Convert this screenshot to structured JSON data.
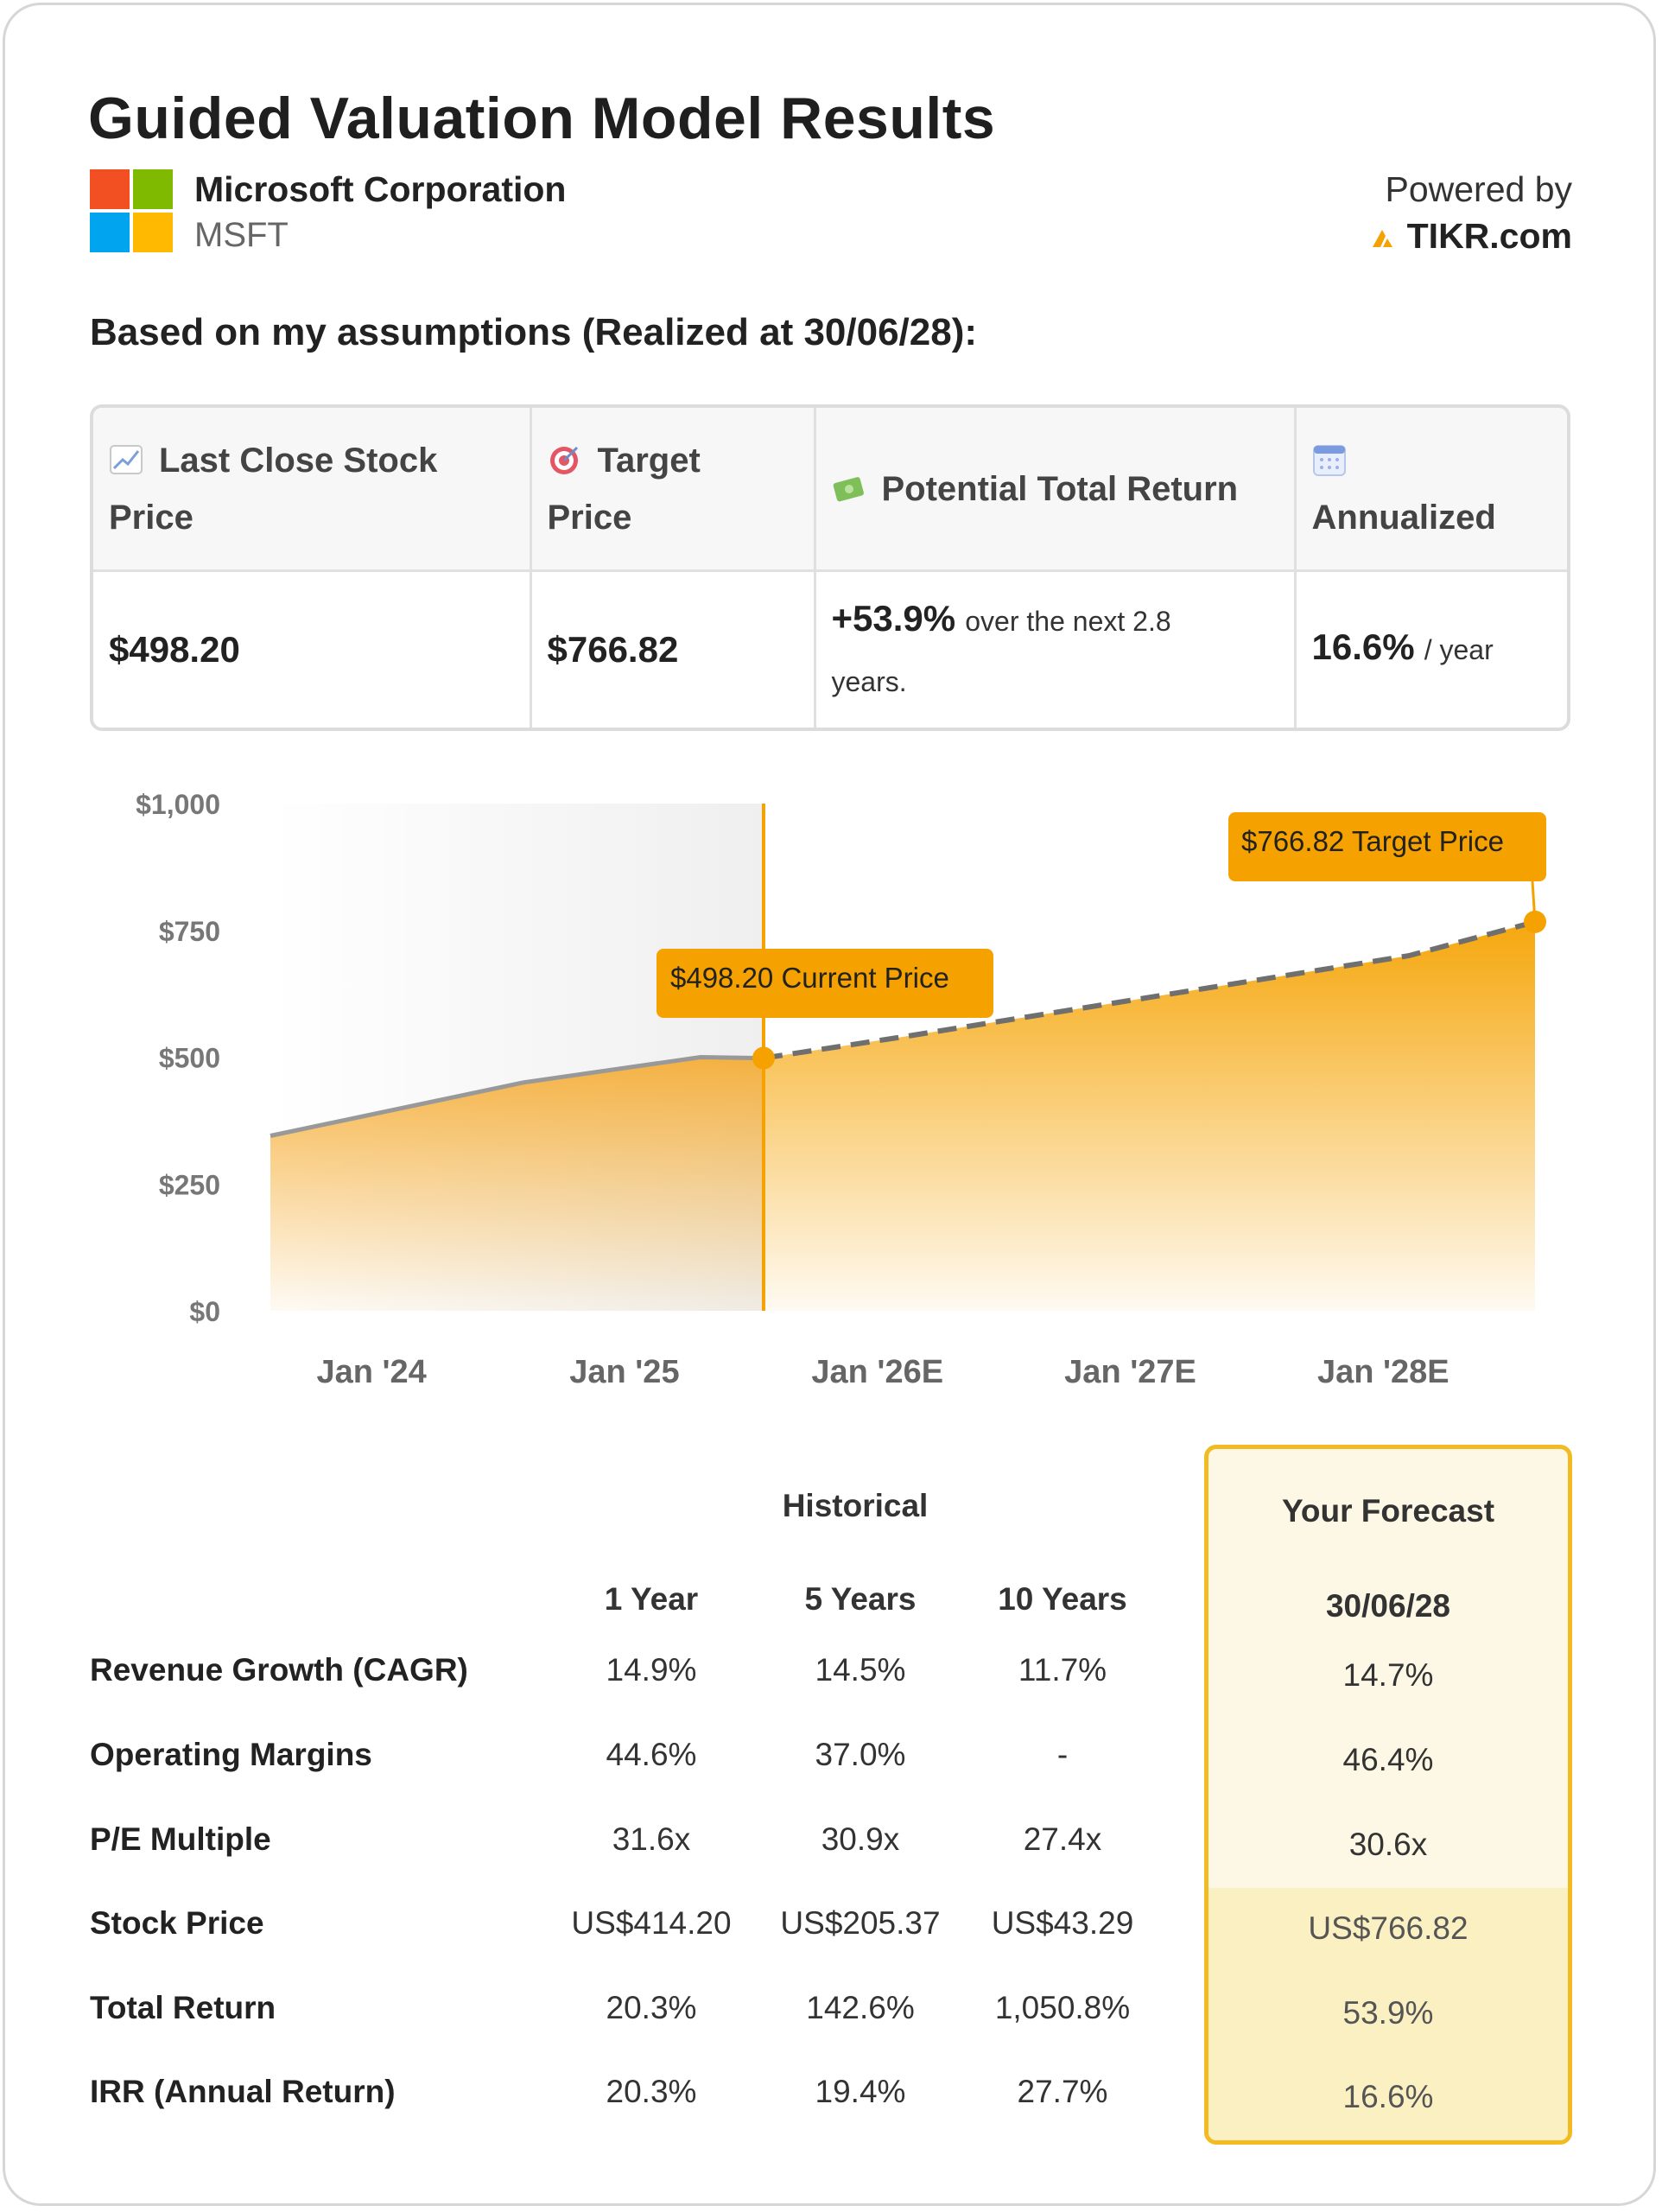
{
  "header": {
    "title": "Guided Valuation Model Results",
    "company": "Microsoft Corporation",
    "ticker": "MSFT",
    "powered_by": "Powered by",
    "brand": "TIKR.com",
    "assumptions": "Based on my assumptions (Realized at 30/06/28):"
  },
  "colors": {
    "ms_red": "#f25022",
    "ms_green": "#7fba00",
    "ms_blue": "#00a4ef",
    "ms_yellow": "#ffb900",
    "accent": "#f5a200",
    "forecast_border": "#f2bb22"
  },
  "summary": {
    "headers": [
      {
        "icon": "chart-up-icon",
        "line1": "Last Close Stock",
        "line2": "Price"
      },
      {
        "icon": "target-icon",
        "line1": "Target",
        "line2": "Price"
      },
      {
        "icon": "money-icon",
        "line1": "Potential Total Return",
        "line2": ""
      },
      {
        "icon": "calendar-icon",
        "line1": "",
        "line2": "Annualized"
      }
    ],
    "last_close": "$498.20",
    "target": "$766.82",
    "return_value": "+53.9%",
    "return_text_1": "over the next 2.8",
    "return_text_2": "years.",
    "annualized_value": "16.6%",
    "annualized_unit": "/ year"
  },
  "chart_data": {
    "type": "area",
    "y_ticks": [
      "$1,000",
      "$750",
      "$500",
      "$250",
      "$0"
    ],
    "ylim": [
      0,
      1000
    ],
    "x_ticks": [
      "Jan '24",
      "Jan '25",
      "Jan '26E",
      "Jan '27E",
      "Jan '28E"
    ],
    "historical": {
      "name": "Historical",
      "x": [
        2023.5,
        2024.5,
        2025.2,
        2025.45
      ],
      "values": [
        345,
        450,
        500,
        498.2
      ]
    },
    "forecast": {
      "name": "Forecast",
      "x": [
        2025.45,
        2026.0,
        2027.0,
        2028.0,
        2028.5
      ],
      "values": [
        498.2,
        540,
        620,
        700,
        766.82
      ]
    },
    "current_label": "$498.20 Current Price",
    "target_label": "$766.82 Target Price",
    "current_x": 2025.45,
    "current_value": 498.2,
    "target_x": 2028.5,
    "target_value": 766.82
  },
  "metrics": {
    "historical_label": "Historical",
    "forecast_label": "Your Forecast",
    "columns": [
      "1 Year",
      "5 Years",
      "10 Years"
    ],
    "forecast_date": "30/06/28",
    "rows": [
      {
        "label": "Revenue Growth (CAGR)",
        "y1": "14.9%",
        "y5": "14.5%",
        "y10": "11.7%",
        "fc": "14.7%"
      },
      {
        "label": "Operating Margins",
        "y1": "44.6%",
        "y5": "37.0%",
        "y10": "-",
        "fc": "46.4%"
      },
      {
        "label": "P/E Multiple",
        "y1": "31.6x",
        "y5": "30.9x",
        "y10": "27.4x",
        "fc": "30.6x"
      },
      {
        "label": "Stock Price",
        "y1": "US$414.20",
        "y5": "US$205.37",
        "y10": "US$43.29",
        "fc": "US$766.82"
      },
      {
        "label": "Total Return",
        "y1": "20.3%",
        "y5": "142.6%",
        "y10": "1,050.8%",
        "fc": "53.9%"
      },
      {
        "label": "IRR (Annual Return)",
        "y1": "20.3%",
        "y5": "19.4%",
        "y10": "27.7%",
        "fc": "16.6%"
      }
    ]
  }
}
